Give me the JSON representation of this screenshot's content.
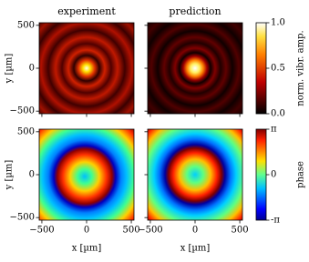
{
  "chart_data": [
    {
      "type": "heatmap",
      "title": "experiment",
      "ylabel": "y [µm]",
      "xlim": [
        -530,
        530
      ],
      "ylim": [
        -530,
        530
      ],
      "xticks": [
        -500,
        0,
        500
      ],
      "show_xticklabels": false,
      "yticks": [
        {
          "value": -500,
          "label": "−500"
        },
        0,
        500
      ]
    },
    {
      "type": "heatmap",
      "title": "prediction",
      "xlim": [
        -530,
        530
      ],
      "ylim": [
        -530,
        530
      ],
      "xticks": [
        -500,
        0,
        500
      ],
      "show_xticklabels": false,
      "yticks": [
        -500,
        0,
        500
      ],
      "show_yticklabels": false
    },
    {
      "type": "heatmap",
      "ylabel": "y [µm]",
      "xlabel": "x [µm]",
      "xlim": [
        -530,
        530
      ],
      "ylim": [
        -530,
        530
      ],
      "xticks": [
        {
          "value": -500,
          "label": "−500"
        },
        0,
        500
      ],
      "yticks": [
        {
          "value": -500,
          "label": "−500"
        },
        0,
        500
      ]
    },
    {
      "type": "heatmap",
      "xlabel": "x [µm]",
      "xlim": [
        -530,
        530
      ],
      "ylim": [
        -530,
        530
      ],
      "xticks": [
        {
          "value": -500,
          "label": "−500"
        },
        0,
        500
      ],
      "yticks": [
        -500,
        0,
        500
      ],
      "show_yticklabels": false
    }
  ],
  "colorbars": [
    {
      "label": "norm. vibr. amp.",
      "clim": [
        0,
        1
      ],
      "cticks": [
        {
          "value": 0,
          "label": "0.0"
        },
        {
          "value": 0.5,
          "label": "0.5"
        },
        {
          "value": 1,
          "label": "1.0"
        }
      ]
    },
    {
      "label": "phase",
      "clim": [
        -3.14159,
        3.14159
      ],
      "cticks": [
        {
          "value": -3.14159,
          "label": "-π"
        },
        0,
        {
          "value": 3.14159,
          "label": "π"
        }
      ]
    }
  ]
}
